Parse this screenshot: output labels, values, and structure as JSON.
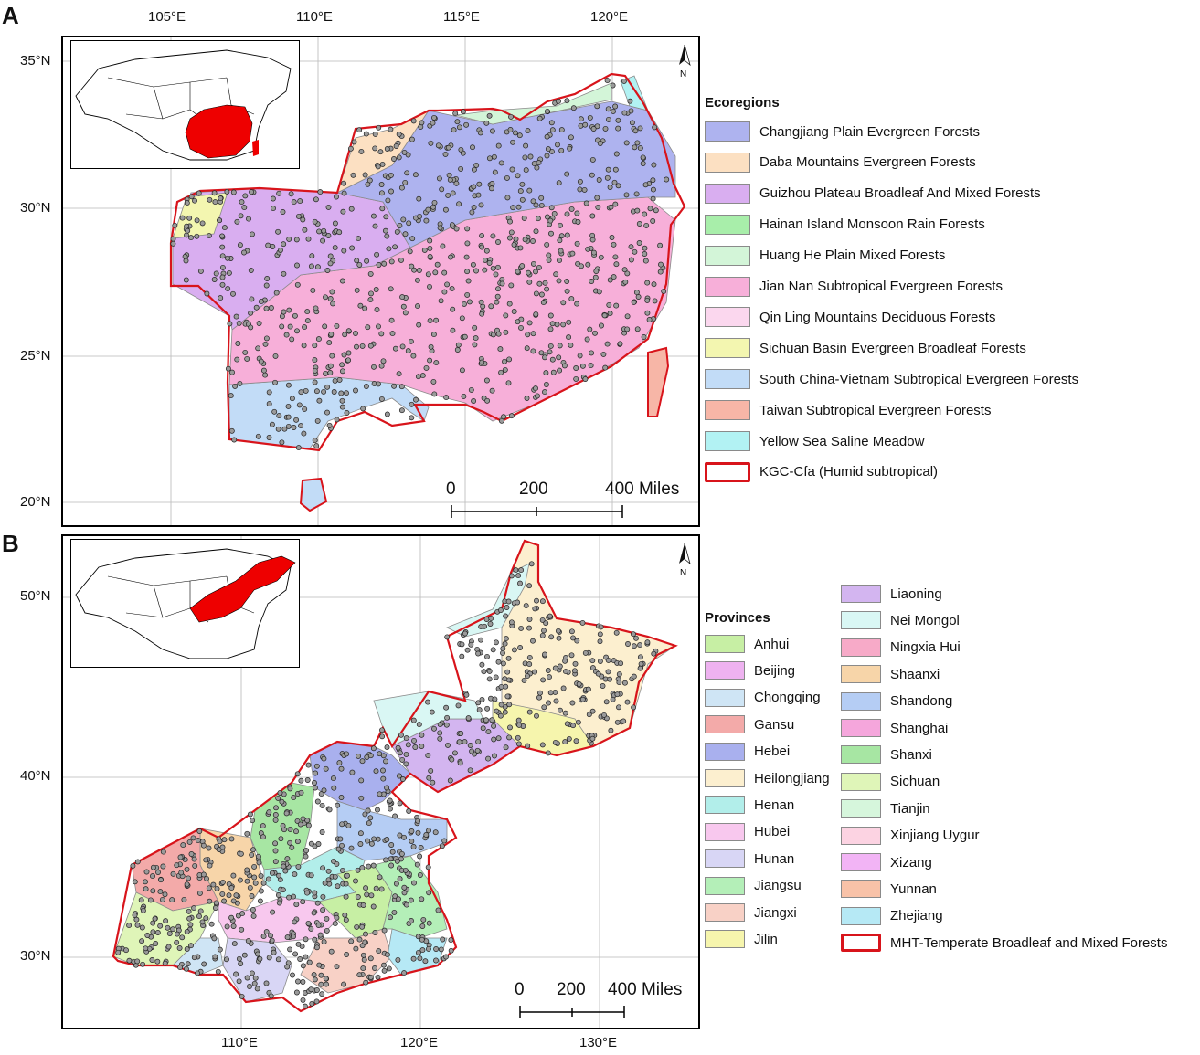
{
  "panels": [
    {
      "letter": "A",
      "lon_ticks": [
        "105°E",
        "110°E",
        "115°E",
        "120°E"
      ],
      "lat_ticks": [
        "35°N",
        "30°N",
        "25°N",
        "20°N"
      ],
      "scale": {
        "labels": [
          "0",
          "200",
          "400 Miles"
        ]
      },
      "north_label": "N",
      "legend_title": "Ecoregions",
      "legend_items": [
        {
          "label": "Changjiang Plain Evergreen Forests",
          "color": "#aeb3ef"
        },
        {
          "label": "Daba Mountains Evergreen Forests",
          "color": "#fce0c2"
        },
        {
          "label": "Guizhou Plateau Broadleaf And Mixed Forests",
          "color": "#d9aef0"
        },
        {
          "label": "Hainan Island Monsoon Rain Forests",
          "color": "#a8eeaa"
        },
        {
          "label": "Huang He Plain Mixed Forests",
          "color": "#d3f5d8"
        },
        {
          "label": "Jian Nan Subtropical Evergreen Forests",
          "color": "#f7afd9"
        },
        {
          "label": "Qin Ling Mountains Deciduous Forests",
          "color": "#fbd7ee"
        },
        {
          "label": "Sichuan Basin Evergreen Broadleaf Forests",
          "color": "#f3f6b0"
        },
        {
          "label": "South China-Vietnam Subtropical Evergreen Forests",
          "color": "#c2dcf7"
        },
        {
          "label": "Taiwan Subtropical Evergreen Forests",
          "color": "#f7b6a7"
        },
        {
          "label": "Yellow Sea Saline Meadow",
          "color": "#b2f2f3"
        },
        {
          "label": "KGC-Cfa (Humid subtropical)",
          "color": "#d8141b",
          "outline": true
        }
      ]
    },
    {
      "letter": "B",
      "lon_ticks": [
        "110°E",
        "120°E",
        "130°E"
      ],
      "lat_ticks": [
        "50°N",
        "40°N",
        "30°N"
      ],
      "scale": {
        "labels": [
          "0",
          "200",
          "400 Miles"
        ]
      },
      "north_label": "N",
      "legend_title": "Provinces",
      "legend_items": [
        {
          "label": "Anhui",
          "color": "#c7efa4"
        },
        {
          "label": "Beijing",
          "color": "#eeb2f0"
        },
        {
          "label": "Chongqing",
          "color": "#cfe5f5"
        },
        {
          "label": "Gansu",
          "color": "#f3aaa9"
        },
        {
          "label": "Hebei",
          "color": "#a9b0ee"
        },
        {
          "label": "Heilongjiang",
          "color": "#fcefcf"
        },
        {
          "label": "Henan",
          "color": "#b2eeea"
        },
        {
          "label": "Hubei",
          "color": "#f8c8ee"
        },
        {
          "label": "Hunan",
          "color": "#d8d6f5"
        },
        {
          "label": "Jiangsu",
          "color": "#b4efb8"
        },
        {
          "label": "Jiangxi",
          "color": "#f8d1c6"
        },
        {
          "label": "Jilin",
          "color": "#f6f5ad"
        },
        {
          "label": "Liaoning",
          "color": "#d3b5f0"
        },
        {
          "label": "Nei Mongol",
          "color": "#d9f7f4"
        },
        {
          "label": "Ningxia Hui",
          "color": "#f7aac8"
        },
        {
          "label": "Shaanxi",
          "color": "#f7d5a9"
        },
        {
          "label": "Shandong",
          "color": "#b5cdf4"
        },
        {
          "label": "Shanghai",
          "color": "#f5a6dc"
        },
        {
          "label": "Shanxi",
          "color": "#a7e6a3"
        },
        {
          "label": "Sichuan",
          "color": "#dff5b8"
        },
        {
          "label": "Tianjin",
          "color": "#d6f6dc"
        },
        {
          "label": "Xinjiang Uygur",
          "color": "#fcd3e2"
        },
        {
          "label": "Xizang",
          "color": "#f2b4f5"
        },
        {
          "label": "Yunnan",
          "color": "#f8c2a8"
        },
        {
          "label": "Zhejiang",
          "color": "#b6e9f5"
        },
        {
          "label": "MHT-Temperate Broadleaf and Mixed Forests",
          "color": "#d8141b",
          "outline": true
        }
      ]
    }
  ]
}
